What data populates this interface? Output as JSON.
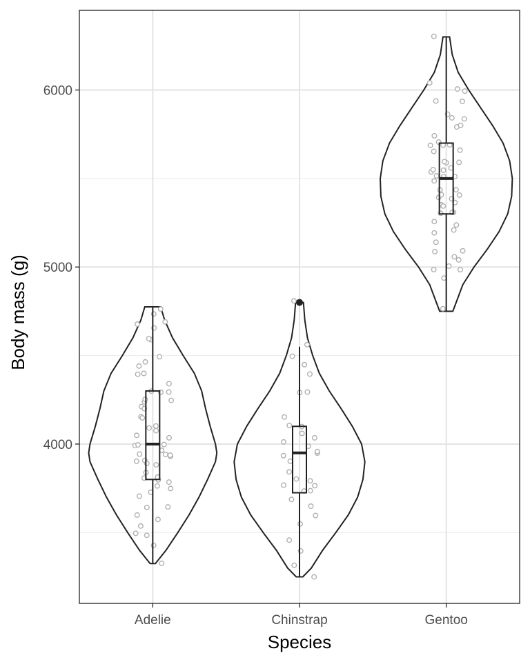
{
  "chart_data": {
    "type": "violin",
    "title": "",
    "xlabel": "Species",
    "ylabel": "Body mass (g)",
    "ylim": [
      3100,
      6450
    ],
    "yticks": [
      4000,
      5000,
      6000
    ],
    "y_minor_gridlines": [
      3500,
      4500,
      5500
    ],
    "grid": true,
    "legend": "none",
    "categories": [
      "Adelie",
      "Chinstrap",
      "Gentoo"
    ],
    "groups": [
      {
        "name": "Adelie",
        "violin_range": [
          3325,
          4775
        ],
        "density_profile": [
          [
            3325,
            0.04
          ],
          [
            3400,
            0.2
          ],
          [
            3500,
            0.38
          ],
          [
            3600,
            0.55
          ],
          [
            3700,
            0.7
          ],
          [
            3800,
            0.83
          ],
          [
            3900,
            0.95
          ],
          [
            3950,
            0.97
          ],
          [
            4000,
            0.95
          ],
          [
            4100,
            0.87
          ],
          [
            4200,
            0.8
          ],
          [
            4300,
            0.74
          ],
          [
            4400,
            0.63
          ],
          [
            4500,
            0.46
          ],
          [
            4600,
            0.3
          ],
          [
            4700,
            0.18
          ],
          [
            4775,
            0.12
          ]
        ],
        "box": {
          "q1": 3800,
          "median": 4000,
          "q3": 4300,
          "whisker_low": 3325,
          "whisker_high": 4775
        },
        "outliers": [],
        "points": [
          3325,
          3425,
          3475,
          3500,
          3550,
          3575,
          3600,
          3650,
          3650,
          3700,
          3725,
          3750,
          3750,
          3775,
          3800,
          3800,
          3800,
          3850,
          3875,
          3900,
          3900,
          3900,
          3925,
          3950,
          3950,
          3950,
          3975,
          4000,
          4000,
          4000,
          4050,
          4050,
          4075,
          4100,
          4100,
          4150,
          4150,
          4200,
          4200,
          4250,
          4250,
          4250,
          4300,
          4300,
          4300,
          4350,
          4400,
          4400,
          4450,
          4450,
          4500,
          4600,
          4600,
          4650,
          4675,
          4700,
          4725,
          4775
        ]
      },
      {
        "name": "Chinstrap",
        "violin_range": [
          3250,
          4800
        ],
        "density_profile": [
          [
            3250,
            0.05
          ],
          [
            3300,
            0.18
          ],
          [
            3400,
            0.35
          ],
          [
            3500,
            0.55
          ],
          [
            3600,
            0.74
          ],
          [
            3700,
            0.88
          ],
          [
            3800,
            0.96
          ],
          [
            3900,
            0.99
          ],
          [
            4000,
            0.94
          ],
          [
            4100,
            0.8
          ],
          [
            4200,
            0.63
          ],
          [
            4300,
            0.45
          ],
          [
            4400,
            0.3
          ],
          [
            4500,
            0.2
          ],
          [
            4600,
            0.12
          ],
          [
            4700,
            0.08
          ],
          [
            4750,
            0.07
          ],
          [
            4800,
            0.06
          ]
        ],
        "box": {
          "q1": 3725,
          "median": 3950,
          "q3": 4100,
          "whisker_low": 3250,
          "whisker_high": 4550
        },
        "outliers": [
          4800
        ],
        "points": [
          3250,
          3300,
          3400,
          3450,
          3550,
          3600,
          3650,
          3700,
          3725,
          3750,
          3750,
          3775,
          3800,
          3800,
          3850,
          3900,
          3950,
          3950,
          3950,
          3975,
          4000,
          4050,
          4050,
          4100,
          4100,
          4150,
          4300,
          4300,
          4400,
          4450,
          4500,
          4550,
          4800
        ]
      },
      {
        "name": "Gentoo",
        "violin_range": [
          4750,
          6300
        ],
        "density_profile": [
          [
            4750,
            0.1
          ],
          [
            4800,
            0.15
          ],
          [
            4900,
            0.25
          ],
          [
            5000,
            0.42
          ],
          [
            5100,
            0.62
          ],
          [
            5200,
            0.8
          ],
          [
            5300,
            0.93
          ],
          [
            5400,
            0.99
          ],
          [
            5500,
            1.0
          ],
          [
            5600,
            0.96
          ],
          [
            5700,
            0.86
          ],
          [
            5800,
            0.7
          ],
          [
            5900,
            0.52
          ],
          [
            6000,
            0.34
          ],
          [
            6100,
            0.18
          ],
          [
            6200,
            0.09
          ],
          [
            6300,
            0.05
          ]
        ],
        "box": {
          "q1": 5300,
          "median": 5500,
          "q3": 5700,
          "whisker_low": 4750,
          "whisker_high": 6300
        },
        "outliers": [],
        "points": [
          4750,
          4925,
          5000,
          5000,
          5000,
          5050,
          5050,
          5100,
          5100,
          5150,
          5200,
          5200,
          5250,
          5250,
          5300,
          5300,
          5300,
          5350,
          5350,
          5350,
          5400,
          5400,
          5400,
          5400,
          5450,
          5450,
          5500,
          5500,
          5500,
          5500,
          5550,
          5550,
          5550,
          5550,
          5600,
          5600,
          5600,
          5650,
          5650,
          5700,
          5700,
          5700,
          5700,
          5750,
          5800,
          5800,
          5850,
          5850,
          5850,
          5950,
          5950,
          6000,
          6000,
          6050,
          6300
        ]
      }
    ]
  }
}
